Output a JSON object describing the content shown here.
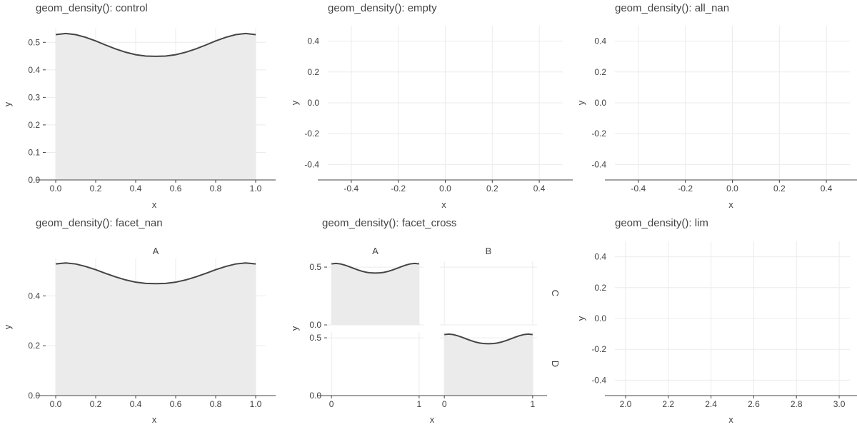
{
  "chart_data": [
    {
      "id": "control",
      "type": "area",
      "title": "geom_density(): control",
      "xlabel": "x",
      "ylabel": "y",
      "xlim": [
        -0.05,
        1.05
      ],
      "ylim": [
        0,
        0.55
      ],
      "xticks": [
        0.0,
        0.2,
        0.4,
        0.6,
        0.8,
        1.0
      ],
      "xtick_labels": [
        "0.0",
        "0.2",
        "0.4",
        "0.6",
        "0.8",
        "1.0"
      ],
      "yticks": [
        0.0,
        0.1,
        0.2,
        0.3,
        0.4,
        0.5
      ],
      "ytick_labels": [
        "0.0",
        "0.1",
        "0.2",
        "0.3",
        "0.4",
        "0.5"
      ],
      "series": [
        {
          "x": [
            0,
            0.05,
            0.1,
            0.15,
            0.2,
            0.25,
            0.3,
            0.35,
            0.4,
            0.45,
            0.5,
            0.55,
            0.6,
            0.65,
            0.7,
            0.75,
            0.8,
            0.85,
            0.9,
            0.95,
            1.0
          ],
          "y": [
            0.528,
            0.532,
            0.528,
            0.518,
            0.505,
            0.49,
            0.476,
            0.464,
            0.455,
            0.45,
            0.449,
            0.45,
            0.455,
            0.464,
            0.476,
            0.49,
            0.505,
            0.518,
            0.528,
            0.532,
            0.528
          ]
        }
      ],
      "grid": true
    },
    {
      "id": "empty",
      "type": "area",
      "title": "geom_density(): empty",
      "xlabel": "x",
      "ylabel": "y",
      "xlim": [
        -0.5,
        0.5
      ],
      "ylim": [
        -0.5,
        0.5
      ],
      "xticks": [
        -0.4,
        -0.2,
        0.0,
        0.2,
        0.4
      ],
      "xtick_labels": [
        "-0.4",
        "-0.2",
        "0.0",
        "0.2",
        "0.4"
      ],
      "yticks": [
        -0.4,
        -0.2,
        0.0,
        0.2,
        0.4
      ],
      "ytick_labels": [
        "-0.4",
        "-0.2",
        "0.0",
        "0.2",
        "0.4"
      ],
      "series": [],
      "grid": true
    },
    {
      "id": "all_nan",
      "type": "area",
      "title": "geom_density(): all_nan",
      "xlabel": "x",
      "ylabel": "y",
      "xlim": [
        -0.5,
        0.5
      ],
      "ylim": [
        -0.5,
        0.5
      ],
      "xticks": [
        -0.4,
        -0.2,
        0.0,
        0.2,
        0.4
      ],
      "xtick_labels": [
        "-0.4",
        "-0.2",
        "0.0",
        "0.2",
        "0.4"
      ],
      "yticks": [
        -0.4,
        -0.2,
        0.0,
        0.2,
        0.4
      ],
      "ytick_labels": [
        "-0.4",
        "-0.2",
        "0.0",
        "0.2",
        "0.4"
      ],
      "series": [],
      "grid": true
    },
    {
      "id": "facet_nan",
      "type": "area",
      "title": "geom_density(): facet_nan",
      "xlabel": "x",
      "ylabel": "y",
      "facet_strip": "A",
      "xlim": [
        -0.05,
        1.05
      ],
      "ylim": [
        0,
        0.55
      ],
      "xticks": [
        0.0,
        0.2,
        0.4,
        0.6,
        0.8,
        1.0
      ],
      "xtick_labels": [
        "0.0",
        "0.2",
        "0.4",
        "0.6",
        "0.8",
        "1.0"
      ],
      "yticks": [
        0.0,
        0.2,
        0.4
      ],
      "ytick_labels": [
        "0.0",
        "0.2",
        "0.4"
      ],
      "series": [
        {
          "x": [
            0,
            0.05,
            0.1,
            0.15,
            0.2,
            0.25,
            0.3,
            0.35,
            0.4,
            0.45,
            0.5,
            0.55,
            0.6,
            0.65,
            0.7,
            0.75,
            0.8,
            0.85,
            0.9,
            0.95,
            1.0
          ],
          "y": [
            0.528,
            0.532,
            0.528,
            0.518,
            0.505,
            0.49,
            0.476,
            0.464,
            0.455,
            0.45,
            0.449,
            0.45,
            0.455,
            0.464,
            0.476,
            0.49,
            0.505,
            0.518,
            0.528,
            0.532,
            0.528
          ]
        }
      ],
      "grid": true
    },
    {
      "id": "facet_cross",
      "type": "area",
      "title": "geom_density(): facet_cross",
      "xlabel": "x",
      "ylabel": "y",
      "col_strips": [
        "A",
        "B"
      ],
      "row_strips": [
        "C",
        "D"
      ],
      "xlim": [
        -0.05,
        1.05
      ],
      "ylim": [
        0,
        0.55
      ],
      "xticks": [
        0,
        1
      ],
      "xtick_labels": [
        "0",
        "1"
      ],
      "yticks": [
        0.0,
        0.5
      ],
      "ytick_labels": [
        "0.0",
        "0.5"
      ],
      "panels": [
        {
          "col": "A",
          "row": "C",
          "has_density": true
        },
        {
          "col": "B",
          "row": "C",
          "has_density": false
        },
        {
          "col": "A",
          "row": "D",
          "has_density": false
        },
        {
          "col": "B",
          "row": "D",
          "has_density": true
        }
      ],
      "series": [
        {
          "x": [
            0,
            0.05,
            0.1,
            0.15,
            0.2,
            0.25,
            0.3,
            0.35,
            0.4,
            0.45,
            0.5,
            0.55,
            0.6,
            0.65,
            0.7,
            0.75,
            0.8,
            0.85,
            0.9,
            0.95,
            1.0
          ],
          "y": [
            0.528,
            0.532,
            0.528,
            0.518,
            0.505,
            0.49,
            0.476,
            0.464,
            0.455,
            0.45,
            0.449,
            0.45,
            0.455,
            0.464,
            0.476,
            0.49,
            0.505,
            0.518,
            0.528,
            0.532,
            0.528
          ]
        }
      ],
      "grid": true
    },
    {
      "id": "lim",
      "type": "area",
      "title": "geom_density(): lim",
      "xlabel": "x",
      "ylabel": "y",
      "xlim": [
        1.95,
        3.05
      ],
      "ylim": [
        -0.5,
        0.5
      ],
      "xticks": [
        2.0,
        2.2,
        2.4,
        2.6,
        2.8,
        3.0
      ],
      "xtick_labels": [
        "2.0",
        "2.2",
        "2.4",
        "2.6",
        "2.8",
        "3.0"
      ],
      "yticks": [
        -0.4,
        -0.2,
        0.0,
        0.2,
        0.4
      ],
      "ytick_labels": [
        "-0.4",
        "-0.2",
        "0.0",
        "0.2",
        "0.4"
      ],
      "series": [],
      "grid": true
    }
  ],
  "colors": {
    "fill": "#ebebeb",
    "line": "#444444",
    "grid": "#ebebeb",
    "text": "#444444"
  }
}
